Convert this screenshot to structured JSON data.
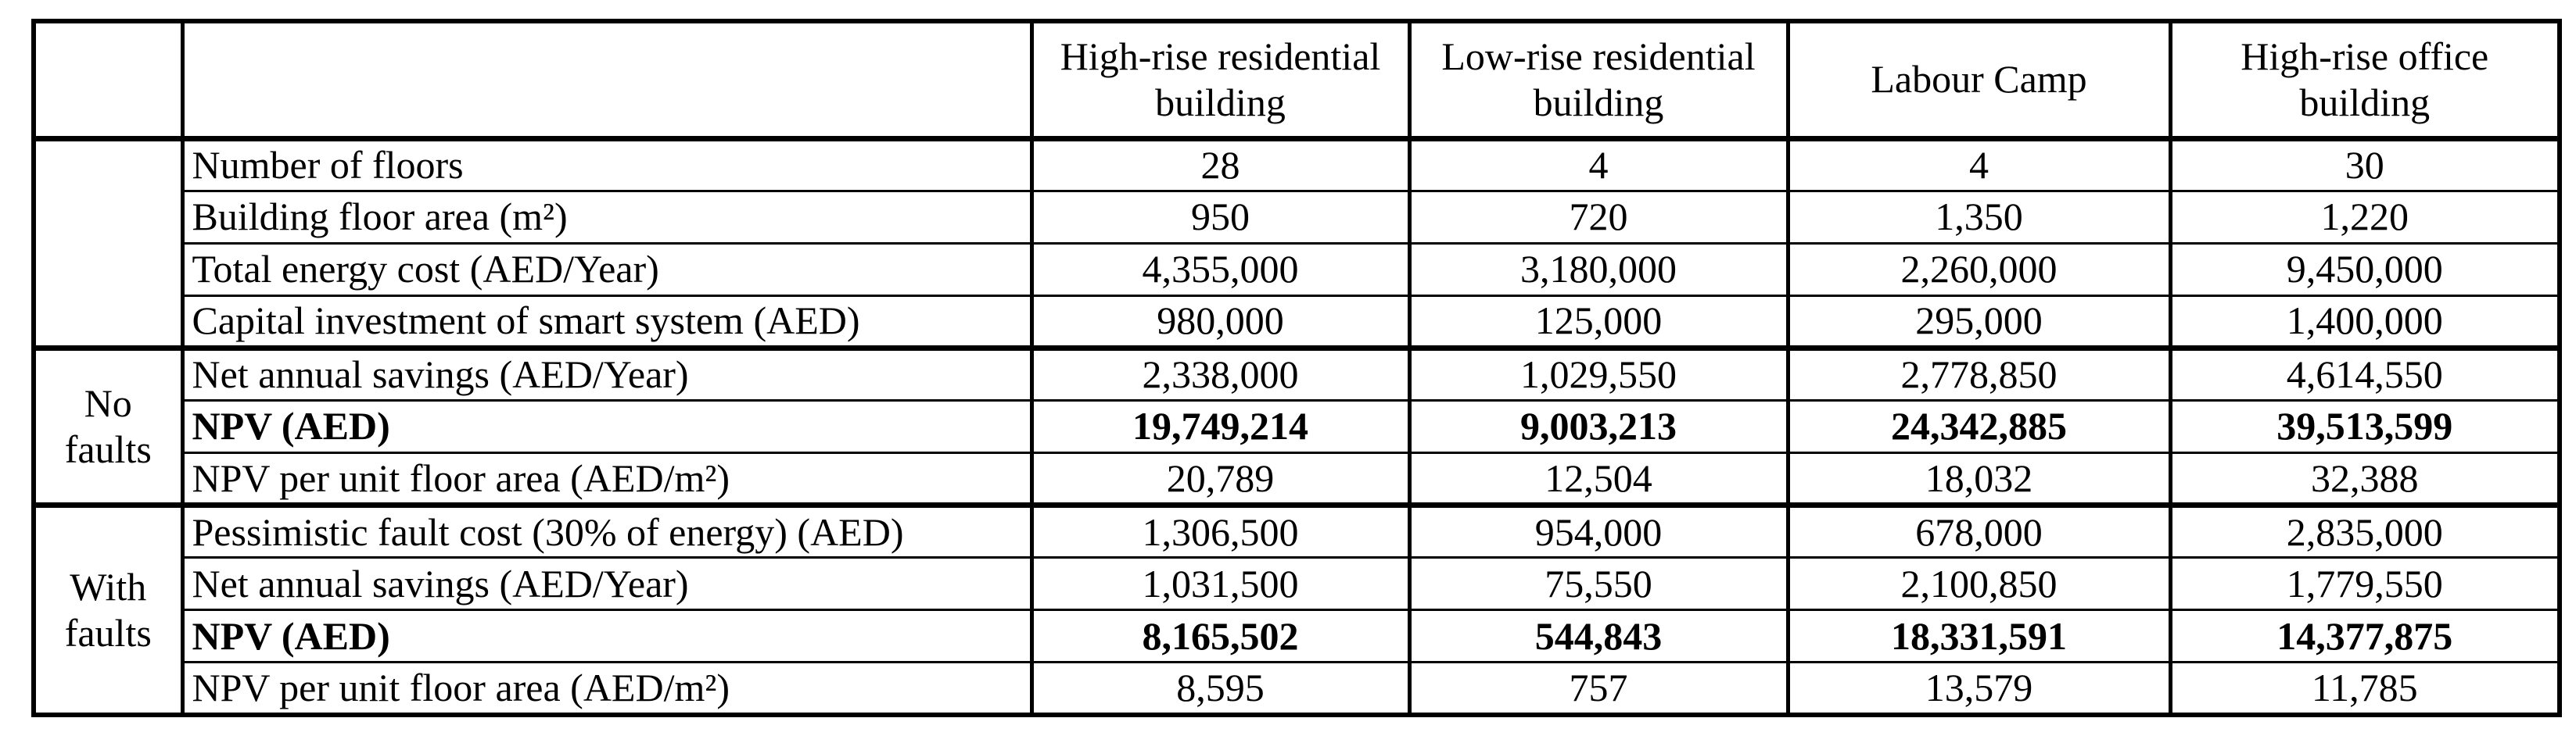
{
  "table": {
    "column_headers": [
      "",
      "",
      "High-rise residential\nbuilding",
      "Low-rise residential\nbuilding",
      "Labour Camp",
      "High-rise office\nbuilding"
    ],
    "groups": [
      {
        "label": "",
        "rows": [
          {
            "label": "Number of floors",
            "values": [
              "28",
              "4",
              "4",
              "30"
            ]
          },
          {
            "label": "Building floor area (m²)",
            "values": [
              "950",
              "720",
              "1,350",
              "1,220"
            ]
          },
          {
            "label": "Total energy cost (AED/Year)",
            "values": [
              "4,355,000",
              "3,180,000",
              "2,260,000",
              "9,450,000"
            ]
          },
          {
            "label": "Capital investment of smart system (AED)",
            "values": [
              "980,000",
              "125,000",
              "295,000",
              "1,400,000"
            ]
          }
        ]
      },
      {
        "label": "No faults",
        "rows": [
          {
            "label": "Net annual savings (AED/Year)",
            "values": [
              "2,338,000",
              "1,029,550",
              "2,778,850",
              "4,614,550"
            ]
          },
          {
            "label": "NPV (AED)",
            "bold": true,
            "values": [
              "19,749,214",
              "9,003,213",
              "24,342,885",
              "39,513,599"
            ]
          },
          {
            "label": "NPV per unit floor area (AED/m²)",
            "values": [
              "20,789",
              "12,504",
              "18,032",
              "32,388"
            ]
          }
        ]
      },
      {
        "label": "With faults",
        "rows": [
          {
            "label": "Pessimistic fault cost (30% of energy) (AED)",
            "values": [
              "1,306,500",
              "954,000",
              "678,000",
              "2,835,000"
            ]
          },
          {
            "label": "Net annual savings (AED/Year)",
            "values": [
              "1,031,500",
              "75,550",
              "2,100,850",
              "1,779,550"
            ]
          },
          {
            "label": "NPV (AED)",
            "bold": true,
            "values": [
              "8,165,502",
              "544,843",
              "18,331,591",
              "14,377,875"
            ]
          },
          {
            "label": "NPV per unit floor area (AED/m²)",
            "values": [
              "8,595",
              "757",
              "13,579",
              "11,785"
            ]
          }
        ]
      }
    ]
  }
}
